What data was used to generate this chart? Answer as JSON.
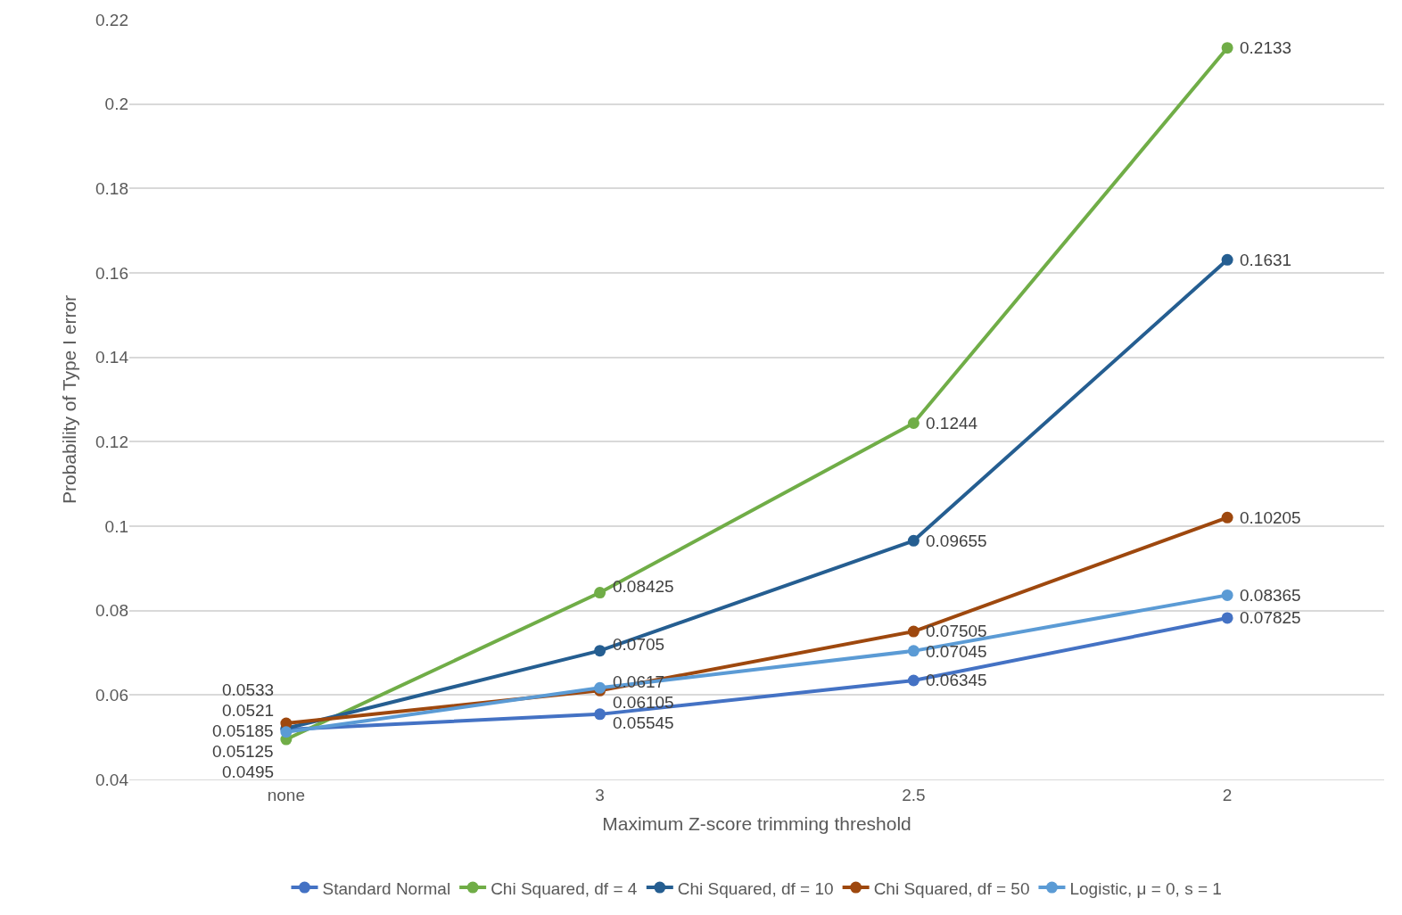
{
  "chart_data": {
    "type": "line",
    "xlabel": "Maximum Z-score trimming threshold",
    "ylabel": "Probability of Type I error",
    "categories": [
      "none",
      "3",
      "2.5",
      "2"
    ],
    "series": [
      {
        "name": "Standard Normal",
        "color": "#4472c4",
        "values": [
          0.05185,
          0.05545,
          0.06345,
          0.07825
        ]
      },
      {
        "name": "Chi Squared, df = 4",
        "color": "#70ad47",
        "values": [
          0.0495,
          0.08425,
          0.1244,
          0.2133
        ]
      },
      {
        "name": "Chi Squared, df = 10",
        "color": "#255e91",
        "values": [
          0.0521,
          0.0705,
          0.09655,
          0.1631
        ]
      },
      {
        "name": "Chi Squared, df = 50",
        "color": "#9e480e",
        "values": [
          0.0533,
          0.06105,
          0.07505,
          0.10205
        ]
      },
      {
        "name": "Logistic, μ = 0, s = 1",
        "color": "#5b9bd5",
        "values": [
          0.05125,
          0.0617,
          0.07045,
          0.08365
        ]
      }
    ],
    "ylim": [
      0.04,
      0.22
    ],
    "yticks": [
      0.04,
      0.06,
      0.08,
      0.1,
      0.12,
      0.14,
      0.16,
      0.18,
      0.2,
      0.22
    ],
    "grid": "y",
    "legend": "bottom",
    "marker": "circle",
    "line_style": "solid",
    "data_labels": true
  }
}
